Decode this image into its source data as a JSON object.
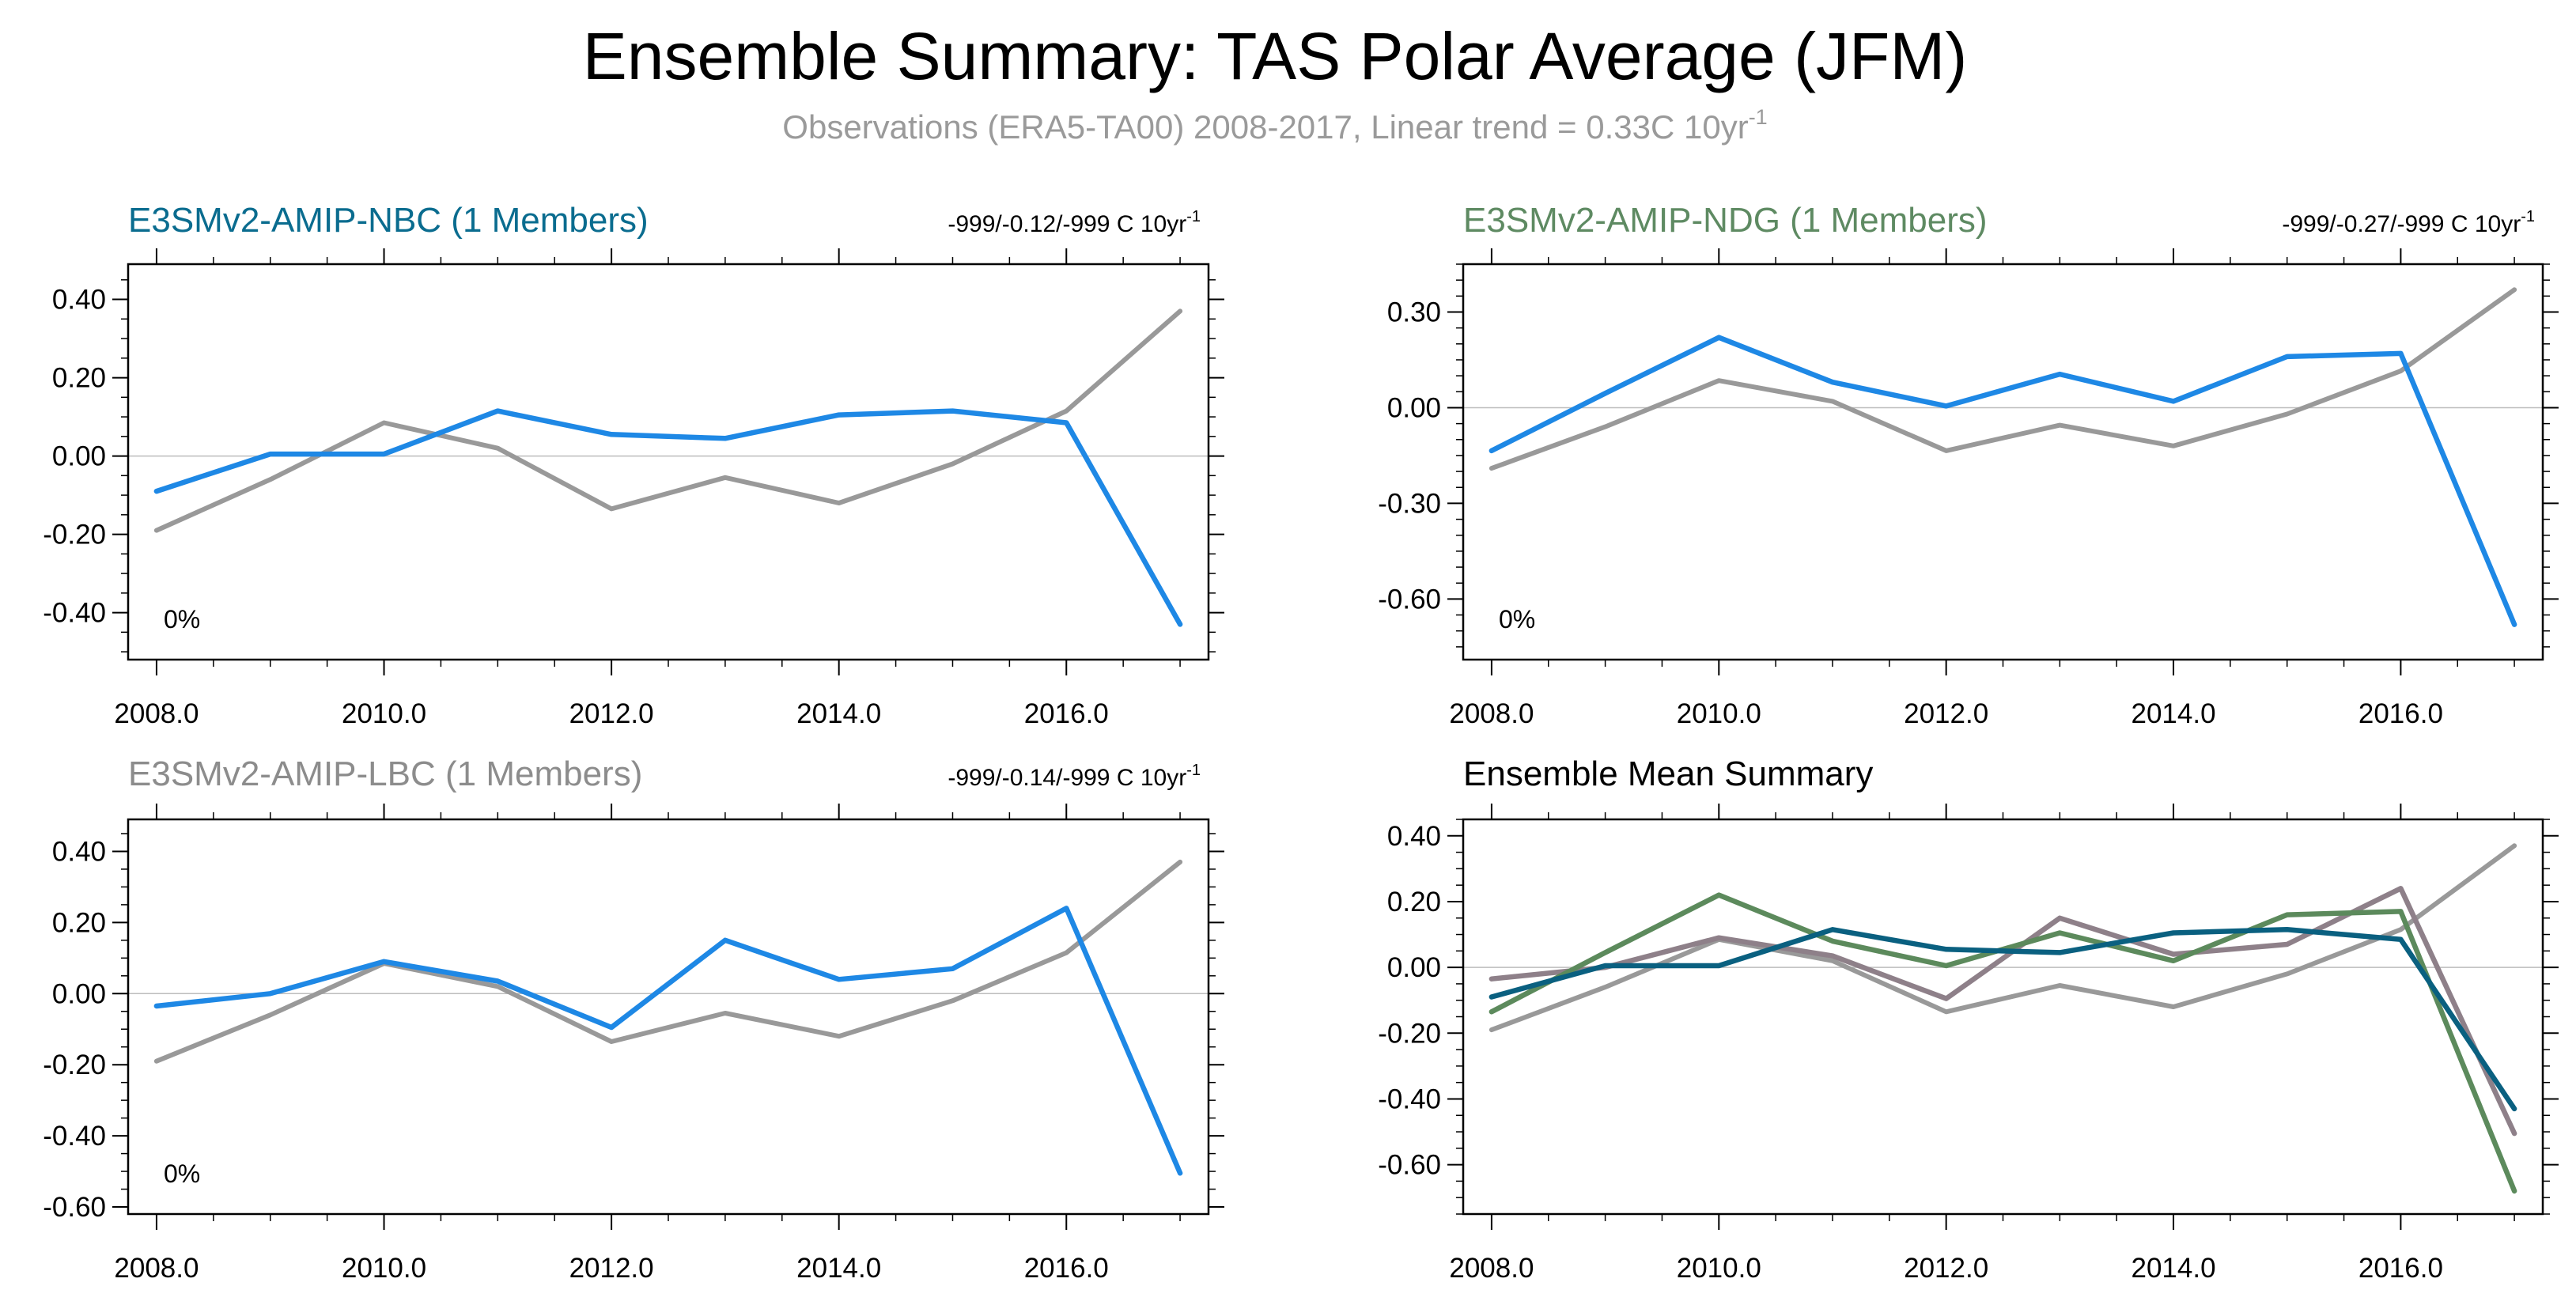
{
  "title": "Ensemble Summary: TAS Polar Average (JFM)",
  "subtitle": {
    "text": "Observations (ERA5-TA00) 2008-2017, Linear trend = 0.33C 10yr",
    "superscript": "-1"
  },
  "colors": {
    "nbc": "#1e88e5",
    "ndg": "#5c8a5c",
    "lbc": "#8c8c8c",
    "obs": "#999999",
    "nbc_mean": "#0a6080",
    "lbc_mean": "#8e8089",
    "nbc_title": "#0a6c8f",
    "ndg_title": "#5e8a62",
    "lbc_title": "#8c8c8c"
  },
  "chart_data": [
    {
      "id": "nbc",
      "type": "line",
      "title": "E3SMv2-AMIP-NBC (1 Members)",
      "trend_text": "-999/-0.12/-999 C 10yr",
      "trend_sup": "-1",
      "percent_label": "0%",
      "x": [
        2008,
        2009,
        2010,
        2011,
        2012,
        2013,
        2014,
        2015,
        2016,
        2017
      ],
      "xlim": [
        2007.75,
        2017.25
      ],
      "ylim": [
        -0.52,
        0.49
      ],
      "xticks": [
        2008,
        2010,
        2012,
        2014,
        2016
      ],
      "xtick_labels": [
        "2008.0",
        "2010.0",
        "2012.0",
        "2014.0",
        "2016.0"
      ],
      "yticks": [
        -0.4,
        -0.2,
        0.0,
        0.2,
        0.4
      ],
      "ytick_labels": [
        "-0.40",
        "-0.20",
        "0.00",
        "0.20",
        "0.40"
      ],
      "series": [
        {
          "key": "obs",
          "values": [
            -0.19,
            -0.06,
            0.085,
            0.02,
            -0.135,
            -0.055,
            -0.12,
            -0.02,
            0.115,
            0.37
          ]
        },
        {
          "key": "nbc",
          "values": [
            -0.09,
            0.005,
            0.005,
            0.115,
            0.055,
            0.045,
            0.105,
            0.115,
            0.085,
            -0.43
          ]
        }
      ]
    },
    {
      "id": "ndg",
      "type": "line",
      "title": "E3SMv2-AMIP-NDG (1 Members)",
      "trend_text": "-999/-0.27/-999 C 10yr",
      "trend_sup": "-1",
      "percent_label": "0%",
      "x": [
        2008,
        2009,
        2010,
        2011,
        2012,
        2013,
        2014,
        2015,
        2016,
        2017
      ],
      "xlim": [
        2007.75,
        2017.25
      ],
      "ylim": [
        -0.79,
        0.45
      ],
      "xticks": [
        2008,
        2010,
        2012,
        2014,
        2016
      ],
      "xtick_labels": [
        "2008.0",
        "2010.0",
        "2012.0",
        "2014.0",
        "2016.0"
      ],
      "yticks": [
        -0.6,
        -0.3,
        0.0,
        0.3
      ],
      "ytick_labels": [
        "-0.60",
        "-0.30",
        "0.00",
        "0.30"
      ],
      "series": [
        {
          "key": "obs",
          "values": [
            -0.19,
            -0.06,
            0.085,
            0.02,
            -0.135,
            -0.055,
            -0.12,
            -0.02,
            0.115,
            0.37
          ]
        },
        {
          "key": "nbc",
          "values": [
            -0.135,
            0.045,
            0.22,
            0.08,
            0.005,
            0.105,
            0.02,
            0.16,
            0.17,
            -0.68
          ]
        }
      ]
    },
    {
      "id": "lbc",
      "type": "line",
      "title": "E3SMv2-AMIP-LBC (1 Members)",
      "trend_text": "-999/-0.14/-999 C 10yr",
      "trend_sup": "-1",
      "percent_label": "0%",
      "x": [
        2008,
        2009,
        2010,
        2011,
        2012,
        2013,
        2014,
        2015,
        2016,
        2017
      ],
      "xlim": [
        2007.75,
        2017.25
      ],
      "ylim": [
        -0.62,
        0.49
      ],
      "xticks": [
        2008,
        2010,
        2012,
        2014,
        2016
      ],
      "xtick_labels": [
        "2008.0",
        "2010.0",
        "2012.0",
        "2014.0",
        "2016.0"
      ],
      "yticks": [
        -0.6,
        -0.4,
        -0.2,
        0.0,
        0.2,
        0.4
      ],
      "ytick_labels": [
        "-0.60",
        "-0.40",
        "-0.20",
        "0.00",
        "0.20",
        "0.40"
      ],
      "series": [
        {
          "key": "obs",
          "values": [
            -0.19,
            -0.06,
            0.085,
            0.02,
            -0.135,
            -0.055,
            -0.12,
            -0.02,
            0.115,
            0.37
          ]
        },
        {
          "key": "nbc",
          "values": [
            -0.035,
            0.0,
            0.09,
            0.035,
            -0.095,
            0.15,
            0.04,
            0.07,
            0.24,
            -0.505
          ]
        }
      ]
    },
    {
      "id": "mean",
      "type": "line",
      "title": "Ensemble Mean Summary",
      "x": [
        2008,
        2009,
        2010,
        2011,
        2012,
        2013,
        2014,
        2015,
        2016,
        2017
      ],
      "xlim": [
        2007.75,
        2017.25
      ],
      "ylim": [
        -0.75,
        0.45
      ],
      "xticks": [
        2008,
        2010,
        2012,
        2014,
        2016
      ],
      "xtick_labels": [
        "2008.0",
        "2010.0",
        "2012.0",
        "2014.0",
        "2016.0"
      ],
      "yticks": [
        -0.6,
        -0.4,
        -0.2,
        0.0,
        0.2,
        0.4
      ],
      "ytick_labels": [
        "-0.60",
        "-0.40",
        "-0.20",
        "0.00",
        "0.20",
        "0.40"
      ],
      "series": [
        {
          "key": "obs",
          "values": [
            -0.19,
            -0.06,
            0.085,
            0.02,
            -0.135,
            -0.055,
            -0.12,
            -0.02,
            0.115,
            0.37
          ]
        },
        {
          "key": "lbc_mean",
          "values": [
            -0.035,
            0.0,
            0.09,
            0.035,
            -0.095,
            0.15,
            0.04,
            0.07,
            0.24,
            -0.505
          ]
        },
        {
          "key": "ndg",
          "values": [
            -0.135,
            0.045,
            0.22,
            0.08,
            0.005,
            0.105,
            0.02,
            0.16,
            0.17,
            -0.68
          ]
        },
        {
          "key": "nbc_mean",
          "values": [
            -0.09,
            0.005,
            0.005,
            0.115,
            0.055,
            0.045,
            0.105,
            0.115,
            0.085,
            -0.43
          ]
        }
      ]
    }
  ]
}
